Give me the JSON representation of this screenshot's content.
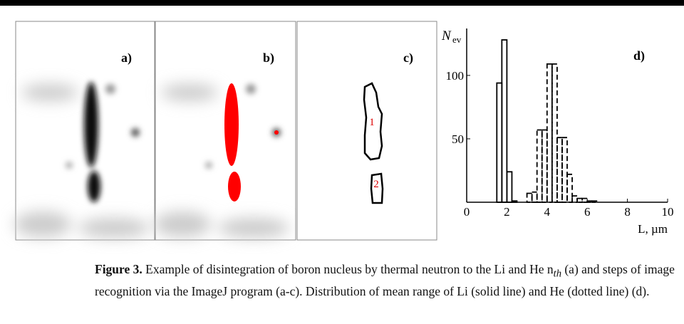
{
  "panels": [
    {
      "label": "a)"
    },
    {
      "label": "b)"
    },
    {
      "label": "c)"
    }
  ],
  "overlay_labels": [
    "1",
    "2"
  ],
  "chart_data": {
    "type": "histogram",
    "panel_label": "d)",
    "ylabel": "N",
    "ylabel_sub": "ev",
    "xlabel": "L, µm",
    "xlim": [
      0,
      10
    ],
    "xticks": [
      0,
      2,
      4,
      6,
      8,
      10
    ],
    "ylim": [
      0,
      137
    ],
    "yticks": [
      50,
      100
    ],
    "series": [
      {
        "style": "solid",
        "color": "#000000",
        "bins": [
          1.5,
          1.75,
          2.0,
          2.25,
          2.5
        ],
        "values": [
          94,
          128,
          24,
          1
        ]
      },
      {
        "style": "dashed",
        "color": "#000000",
        "bins": [
          3.0,
          3.25,
          3.5,
          3.75,
          4.0,
          4.25,
          4.5,
          4.75,
          5.0,
          5.25,
          5.5,
          5.75,
          6.0,
          6.25,
          6.5
        ],
        "values": [
          7,
          8,
          57,
          57,
          109,
          109,
          51,
          51,
          22,
          5,
          3,
          3,
          1,
          1
        ]
      }
    ]
  },
  "caption": {
    "label": "Figure 3.",
    "text": "Example of disintegration of boron nucleus by thermal neutron to the Li and He n",
    "sub": "th",
    "rest": "(a) and steps of image recognition via the ImageJ program (a-c). Distribution of mean range of Li (solid line) and He (dotted line) (d)."
  }
}
